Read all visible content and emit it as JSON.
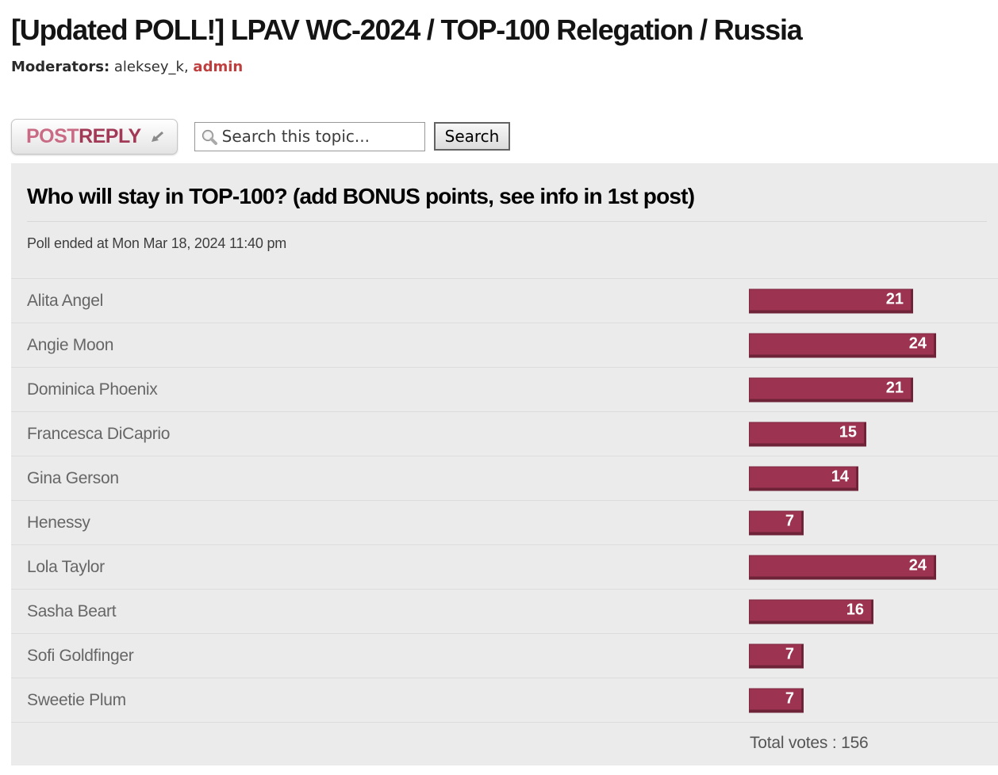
{
  "page": {
    "title": "[Updated POLL!] LPAV WC-2024 / TOP-100 Relegation / Russia",
    "moderators_label": "Moderators:",
    "moderator_first": "aleksey_k",
    "moderator_separator": ",",
    "moderator_second": "admin"
  },
  "toolbar": {
    "post_reply": {
      "post": "POST",
      "reply": "REPLY"
    },
    "search": {
      "placeholder": "Search this topic...",
      "button_label": "Search"
    }
  },
  "poll": {
    "question": "Who will stay in TOP-100? (add BONUS points, see info in 1st post)",
    "status": "Poll ended at Mon Mar 18, 2024 11:40 pm",
    "total_label": "Total votes : 156",
    "total_votes": 156,
    "max_votes": 24,
    "options": [
      {
        "label": "Alita Angel",
        "votes": 21
      },
      {
        "label": "Angie Moon",
        "votes": 24
      },
      {
        "label": "Dominica Phoenix",
        "votes": 21
      },
      {
        "label": "Francesca DiCaprio",
        "votes": 15
      },
      {
        "label": "Gina Gerson",
        "votes": 14
      },
      {
        "label": "Henessy",
        "votes": 7
      },
      {
        "label": "Lola Taylor",
        "votes": 24
      },
      {
        "label": "Sasha Beart",
        "votes": 16
      },
      {
        "label": "Sofi Goldfinger",
        "votes": 7
      },
      {
        "label": "Sweetie Plum",
        "votes": 7
      }
    ]
  },
  "chart_data": {
    "type": "bar",
    "title": "Who will stay in TOP-100? (add BONUS points, see info in 1st post)",
    "categories": [
      "Alita Angel",
      "Angie Moon",
      "Dominica Phoenix",
      "Francesca DiCaprio",
      "Gina Gerson",
      "Henessy",
      "Lola Taylor",
      "Sasha Beart",
      "Sofi Goldfinger",
      "Sweetie Plum"
    ],
    "values": [
      21,
      24,
      21,
      15,
      14,
      7,
      24,
      16,
      7,
      7
    ],
    "total_votes": 156
  },
  "colors": {
    "bar_fill": "#9c3350",
    "bar_edge": "#6f2339",
    "bar_border": "#7d2a42",
    "panel_bg": "#ebebeb",
    "admin_red": "#bf3f3f",
    "post_pink": "#ca6b86",
    "reply_maroon": "#a23a57"
  }
}
